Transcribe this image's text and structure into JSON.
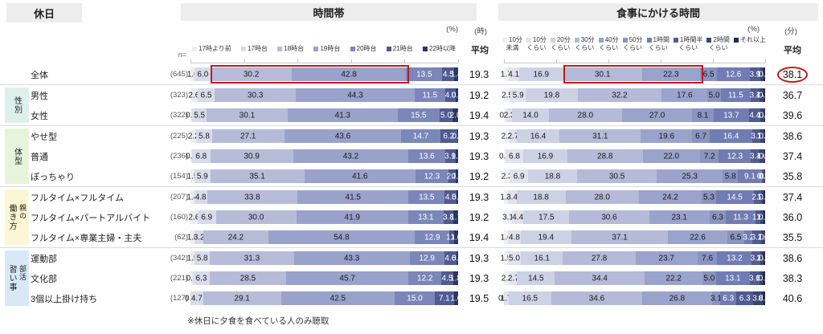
{
  "ui": {
    "holiday_label": "休日",
    "n_label": "n=",
    "footnote": "※休日に夕食を食べている人のみ聴取"
  },
  "chart_data": {
    "type": "bar",
    "stacked": true,
    "orientation": "horizontal",
    "xlim": [
      0,
      100
    ],
    "grid": false,
    "charts": [
      {
        "title": "時間帯",
        "unit_percent": "(%)",
        "unit_avg": "(時)",
        "avg_header": "平均",
        "legend": [
          "17時より前",
          "17時台",
          "18時台",
          "19時台",
          "20時台",
          "21時台",
          "22時以降"
        ],
        "palette": [
          "#ebedf1",
          "#d8dbe9",
          "#b6bcd8",
          "#99a2cb",
          "#7b86b9",
          "#4f5b91",
          "#2c3761"
        ],
        "white_label_from": 4,
        "highlight_box": {
          "row_label": "全体",
          "seg_from": 2,
          "seg_to": 3
        },
        "avg_circle_row": null
      },
      {
        "title": "食事にかける時間",
        "unit_percent": "(%)",
        "unit_avg": "(分)",
        "avg_header": "平均",
        "legend": [
          "10分 未満",
          "10分 くらい",
          "20分 くらい",
          "30分 くらい",
          "40分 くらい",
          "50分 くらい",
          "1時間 くらい",
          "1時間半 くらい",
          "2時間 くらい",
          "それ以上"
        ],
        "legend_lines": [
          [
            "10分",
            "未満"
          ],
          [
            "10分",
            "くらい"
          ],
          [
            "20分",
            "くらい"
          ],
          [
            "30分",
            "くらい"
          ],
          [
            "40分",
            "くらい"
          ],
          [
            "50分",
            "くらい"
          ],
          [
            "1時間",
            "くらい"
          ],
          [
            "1時間半",
            "くらい"
          ],
          [
            "2時間",
            "くらい"
          ],
          [
            "それ以上",
            ""
          ]
        ],
        "palette": [
          "#eff0f4",
          "#e0e2ed",
          "#cdd1e4",
          "#b4bad7",
          "#9aa3cc",
          "#8a94c1",
          "#707cb2",
          "#4f5b91",
          "#39456f",
          "#222c50"
        ],
        "white_label_from": 6,
        "highlight_box": {
          "row_label": "全体",
          "seg_from": 3,
          "seg_to": 4
        },
        "avg_circle_row": "全体"
      }
    ],
    "row_groups": [
      {
        "group": "",
        "sub": "",
        "bg": "transparent",
        "rows": [
          {
            "label": "全体",
            "n": "(645)",
            "values": [
              [
                1.6,
                6.0,
                30.2,
                42.8,
                13.5,
                4.5,
                1.4
              ],
              [
                1.7,
                4.1,
                16.9,
                30.1,
                22.3,
                6.5,
                12.6,
                3.9,
                1.4,
                0.5
              ]
            ],
            "avg": [
              "19.3",
              "38.1"
            ]
          }
        ]
      },
      {
        "group": "性別",
        "sub": "",
        "bg": "#def0ec",
        "rows": [
          {
            "label": "男性",
            "n": "(323)",
            "values": [
              [
                2.6,
                6.5,
                30.3,
                44.3,
                11.5,
                4.0,
                0.8
              ],
              [
                2.5,
                5.9,
                19.8,
                32.2,
                17.6,
                5.0,
                11.5,
                3.4,
                1.4,
                0.7
              ]
            ],
            "avg": [
              "19.2",
              "36.7"
            ]
          },
          {
            "label": "女性",
            "n": "(322)",
            "values": [
              [
                0.6,
                5.5,
                30.1,
                41.3,
                15.5,
                5.0,
                2.0
              ],
              [
                0.9,
                2.3,
                14.0,
                28.0,
                27.0,
                8.1,
                13.7,
                4.4,
                1.4,
                0.3
              ]
            ],
            "avg": [
              "19.4",
              "39.6"
            ]
          }
        ]
      },
      {
        "group": "体型",
        "sub": "",
        "bg": "#e7f4dc",
        "rows": [
          {
            "label": "やせ型",
            "n": "(225)",
            "values": [
              [
                2.2,
                5.8,
                27.1,
                43.6,
                14.7,
                6.2,
                0.4
              ],
              [
                2.2,
                2.7,
                16.4,
                31.1,
                19.6,
                6.7,
                16.4,
                3.1,
                1.3,
                0.4
              ]
            ],
            "avg": [
              "19.3",
              "38.6"
            ]
          },
          {
            "label": "普通",
            "n": "(236)",
            "values": [
              [
                0.6,
                6.8,
                30.9,
                43.2,
                13.6,
                3.9,
                1.0
              ],
              [
                0.6,
                6.8,
                16.9,
                28.8,
                22.0,
                7.2,
                12.3,
                3.4,
                1.6,
                0.4
              ]
            ],
            "avg": [
              "19.3",
              "37.4"
            ]
          },
          {
            "label": "ぽっちゃり",
            "n": "(154)",
            "values": [
              [
                1.5,
                5.9,
                35.1,
                41.6,
                12.3,
                2.8,
                0.8
              ],
              [
                2.3,
                6.9,
                18.8,
                30.5,
                25.3,
                5.8,
                9.1,
                0.6,
                0.7,
                0.0
              ]
            ],
            "avg": [
              "19.2",
              "35.8"
            ]
          }
        ]
      },
      {
        "group": "働き方",
        "sub": "親の",
        "bg": "#fbf6d4",
        "rows": [
          {
            "label": "フルタイム×フルタイム",
            "n": "(207)",
            "values": [
              [
                1.4,
                4.8,
                33.8,
                41.5,
                13.5,
                4.5,
                0.5
              ],
              [
                1.4,
                3.4,
                18.8,
                28.0,
                24.2,
                5.3,
                14.5,
                2.9,
                1.0,
                0.5
              ]
            ],
            "avg": [
              "19.3",
              "37.4"
            ]
          },
          {
            "label": "フルタイム×パートアルバイト",
            "n": "(160)",
            "values": [
              [
                2.6,
                6.9,
                30.0,
                41.9,
                13.1,
                3.8,
                1.7
              ],
              [
                3.1,
                4.4,
                17.5,
                30.6,
                23.1,
                6.3,
                11.3,
                1.9,
                1.2,
                0.6
              ]
            ],
            "avg": [
              "19.2",
              "36.0"
            ]
          },
          {
            "label": "フルタイム×専業主婦・主夫",
            "n": "(62)",
            "values": [
              [
                1.6,
                3.2,
                24.2,
                54.8,
                12.9,
                1.6,
                1.6
              ],
              [
                1.6,
                4.8,
                19.4,
                37.1,
                22.6,
                6.5,
                3.2,
                3.2,
                1.6,
                0.0
              ]
            ],
            "avg": [
              "19.4",
              "35.5"
            ]
          }
        ]
      },
      {
        "group": "習い事",
        "sub": "部活",
        "bg": "#d8e8f7",
        "rows": [
          {
            "label": "運動部",
            "n": "(342)",
            "values": [
              [
                1.5,
                5.8,
                31.3,
                43.3,
                12.9,
                4.6,
                0.6
              ],
              [
                1.5,
                5.0,
                16.1,
                27.8,
                23.7,
                7.6,
                13.2,
                3.2,
                1.4,
                0.5
              ]
            ],
            "avg": [
              "19.3",
              "38.6"
            ]
          },
          {
            "label": "文化部",
            "n": "(221)",
            "values": [
              [
                0.9,
                6.3,
                28.5,
                45.7,
                12.2,
                4.5,
                1.8
              ],
              [
                2.3,
                2.7,
                14.5,
                34.4,
                22.2,
                5.0,
                13.1,
                3.6,
                1.4,
                0.8
              ]
            ],
            "avg": [
              "19.3",
              "38.3"
            ]
          },
          {
            "label": "3個以上掛け持ち",
            "n": "(127)",
            "values": [
              [
                0.0,
                4.7,
                29.1,
                42.5,
                15.0,
                7.1,
                1.6
              ],
              [
                0.0,
                1.7,
                16.5,
                34.6,
                26.8,
                3.1,
                6.3,
                6.3,
                3.8,
                0.8
              ]
            ],
            "avg": [
              "19.5",
              "40.6"
            ]
          }
        ]
      }
    ]
  }
}
